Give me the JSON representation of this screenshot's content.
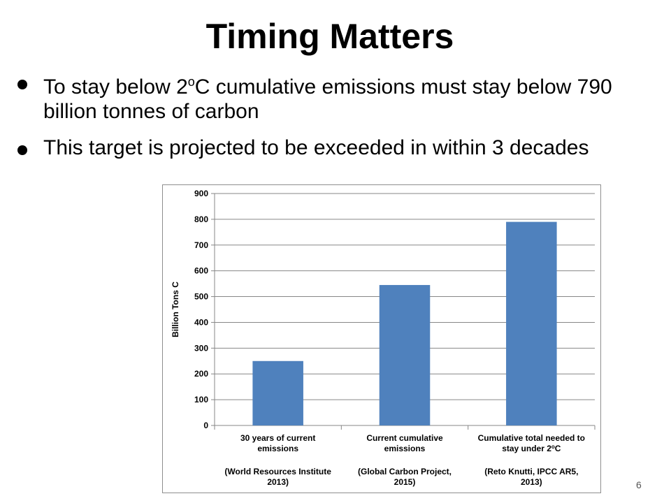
{
  "slide": {
    "title": "Timing Matters",
    "bullets": [
      {
        "pre": "To stay below 2",
        "sup": "o",
        "post": "C cumulative emissions must stay below 790 billion tonnes of carbon"
      },
      {
        "pre": "This target is projected to be exceeded in within 3 decades",
        "sup": "",
        "post": ""
      }
    ],
    "page_number": "6"
  },
  "chart_data": {
    "type": "bar",
    "ylabel": "Billion Tons C",
    "ylim": [
      0,
      900
    ],
    "yticks": [
      0,
      100,
      200,
      300,
      400,
      500,
      600,
      700,
      800,
      900
    ],
    "grid": true,
    "bar_color": "#4f81bd",
    "categories": [
      {
        "lines": [
          [
            "30 years of current"
          ],
          [
            "emissions"
          ]
        ],
        "source": [
          "(World Resources Institute",
          "2013)"
        ]
      },
      {
        "lines": [
          [
            "Current cumulative"
          ],
          [
            "emissions"
          ]
        ],
        "source": [
          "(Global Carbon Project,",
          "2015)"
        ]
      },
      {
        "lines": [
          [
            "Cumulative total needed to"
          ],
          [
            "stay under 2",
            "o",
            "C"
          ]
        ],
        "source": [
          "(Reto Knutti, IPCC AR5,",
          "2013)"
        ]
      }
    ],
    "values": [
      250,
      545,
      790
    ]
  }
}
